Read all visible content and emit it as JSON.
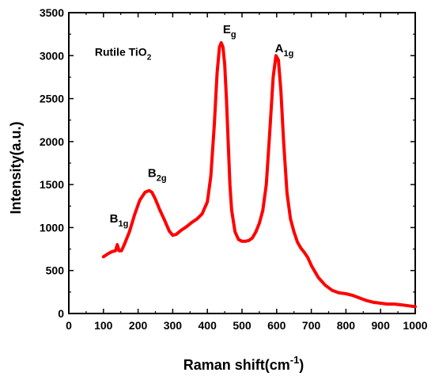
{
  "chart_data": {
    "type": "line",
    "title": "",
    "xlabel": "Raman shift(cm",
    "xlabel_sup": "-1",
    "xlabel_tail": ")",
    "ylabel": "Intensity(a.u.)",
    "xlim": [
      0,
      1000
    ],
    "ylim": [
      0,
      3500
    ],
    "x_ticks": [
      "0",
      "100",
      "200",
      "300",
      "400",
      "500",
      "600",
      "700",
      "800",
      "900",
      "1000"
    ],
    "y_ticks": [
      "0",
      "500",
      "1000",
      "1500",
      "2000",
      "2500",
      "3000",
      "3500"
    ],
    "grid": false,
    "line_color": "#ff0000",
    "series": [
      {
        "x": [
          100,
          115,
          125,
          135,
          140,
          145,
          152,
          160,
          175,
          190,
          205,
          220,
          232,
          240,
          250,
          262,
          275,
          290,
          300,
          310,
          325,
          340,
          355,
          370,
          385,
          400,
          410,
          420,
          428,
          435,
          440,
          445,
          450,
          455,
          460,
          465,
          470,
          480,
          490,
          500,
          510,
          520,
          530,
          540,
          550,
          560,
          570,
          580,
          590,
          598,
          605,
          612,
          620,
          630,
          640,
          650,
          660,
          670,
          680,
          690,
          700,
          720,
          740,
          760,
          780,
          800,
          820,
          840,
          860,
          880,
          900,
          920,
          940,
          960,
          980,
          1000
        ],
        "y": [
          660,
          700,
          720,
          730,
          800,
          730,
          730,
          800,
          950,
          1150,
          1320,
          1410,
          1430,
          1410,
          1330,
          1210,
          1100,
          960,
          910,
          920,
          970,
          1010,
          1060,
          1100,
          1160,
          1300,
          1600,
          2200,
          2800,
          3100,
          3150,
          3100,
          2900,
          2500,
          2000,
          1500,
          1200,
          950,
          860,
          840,
          840,
          850,
          880,
          950,
          1050,
          1200,
          1500,
          2100,
          2750,
          3000,
          2950,
          2600,
          2000,
          1400,
          1100,
          950,
          830,
          760,
          710,
          650,
          560,
          420,
          330,
          270,
          240,
          230,
          210,
          180,
          150,
          130,
          120,
          110,
          110,
          100,
          90,
          80
        ]
      }
    ],
    "annotations": [
      {
        "base": "Rutile TiO",
        "sub": "2",
        "x": 75,
        "y": 3000,
        "size": 14
      },
      {
        "base": "E",
        "sub": "g",
        "x": 445,
        "y": 3260,
        "size": 15
      },
      {
        "base": "A",
        "sub": "1g",
        "x": 595,
        "y": 3040,
        "size": 15
      },
      {
        "base": "B",
        "sub": "2g",
        "x": 228,
        "y": 1590,
        "size": 15
      },
      {
        "base": "B",
        "sub": "1g",
        "x": 118,
        "y": 1060,
        "size": 15
      }
    ]
  }
}
